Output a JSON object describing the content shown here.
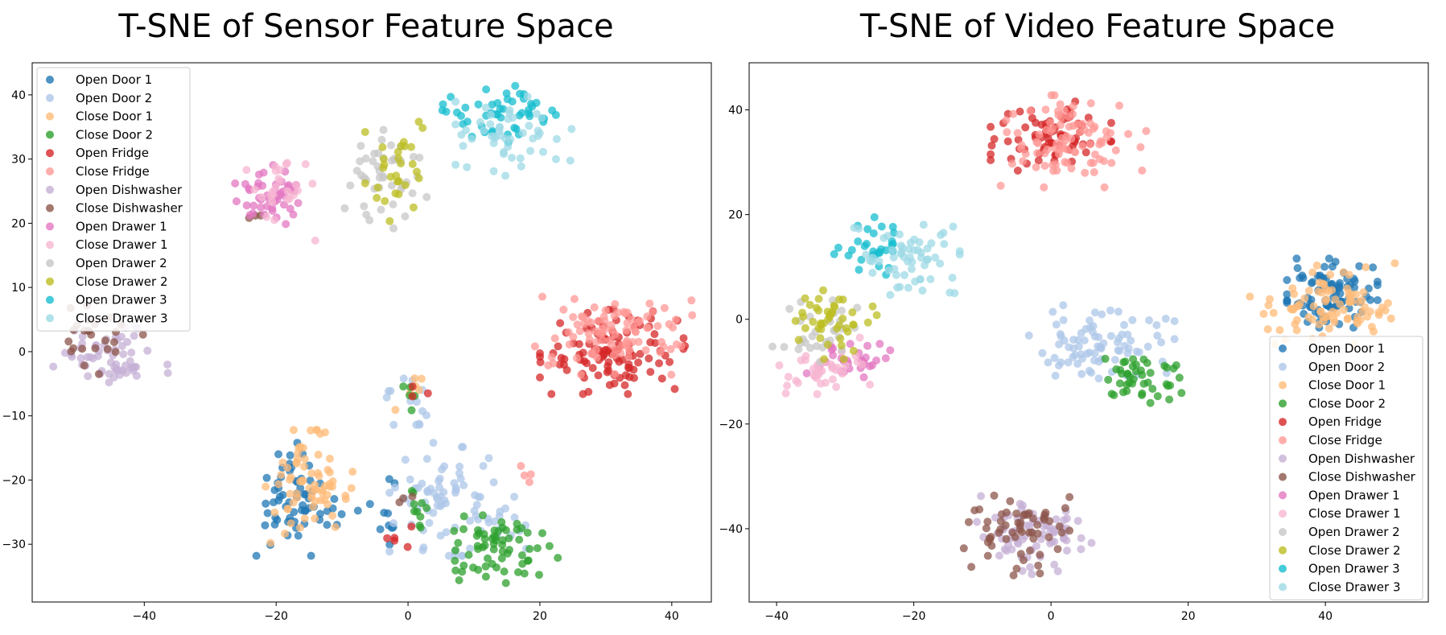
{
  "palette": {
    "Open Door 1": "#1f77b4",
    "Open Door 2": "#aec7e8",
    "Close Door 1": "#ffbb78",
    "Close Door 2": "#2ca02c",
    "Open Fridge": "#d62728",
    "Close Fridge": "#ff9896",
    "Open Dishwasher": "#c5b0d5",
    "Close Dishwasher": "#8c564b",
    "Open Drawer 1": "#e377c2",
    "Close Drawer 1": "#f7b6d2",
    "Open Drawer 2": "#c7c7c7",
    "Close Drawer 2": "#bcbd22",
    "Open Drawer 3": "#17becf",
    "Close Drawer 3": "#9edae5"
  },
  "chart_data": [
    {
      "type": "scatter",
      "title": "T-SNE of Sensor Feature Space",
      "xlabel": "",
      "ylabel": "",
      "xlim": [
        -57,
        46
      ],
      "ylim": [
        -39,
        45
      ],
      "xticks": [
        -40,
        -20,
        0,
        20,
        40
      ],
      "yticks": [
        -30,
        -20,
        -10,
        0,
        10,
        20,
        30,
        40
      ],
      "grid": false,
      "legend": "upper-left",
      "series": [
        {
          "name": "Open Door 1",
          "clusters": [
            {
              "cx": -18,
              "cy": -23,
              "sx": 2.5,
              "sy": 4,
              "n": 55
            },
            {
              "cx": -12,
              "cy": -25,
              "sx": 2,
              "sy": 1.5,
              "n": 10
            },
            {
              "cx": -3,
              "cy": -24,
              "sx": 2,
              "sy": 4,
              "n": 10
            }
          ]
        },
        {
          "name": "Open Door 2",
          "clusters": [
            {
              "cx": 6,
              "cy": -23,
              "sx": 4,
              "sy": 4,
              "n": 70
            },
            {
              "cx": 0,
              "cy": -7,
              "sx": 2,
              "sy": 2,
              "n": 14
            },
            {
              "cx": 13,
              "cy": -27,
              "sx": 3,
              "sy": 2,
              "n": 15
            }
          ]
        },
        {
          "name": "Close Door 1",
          "clusters": [
            {
              "cx": -15,
              "cy": -21,
              "sx": 3,
              "sy": 4,
              "n": 70
            },
            {
              "cx": 0,
              "cy": -6,
              "sx": 1.5,
              "sy": 1.5,
              "n": 6
            }
          ]
        },
        {
          "name": "Close Door 2",
          "clusters": [
            {
              "cx": 14,
              "cy": -31,
              "sx": 4,
              "sy": 2.5,
              "n": 65
            },
            {
              "cx": 2,
              "cy": -23,
              "sx": 2,
              "sy": 3,
              "n": 10
            },
            {
              "cx": 0,
              "cy": -7,
              "sx": 1.5,
              "sy": 1.5,
              "n": 5
            }
          ]
        },
        {
          "name": "Open Fridge",
          "clusters": [
            {
              "cx": 31,
              "cy": 0,
              "sx": 5,
              "sy": 3,
              "n": 110
            },
            {
              "cx": -1,
              "cy": -29,
              "sx": 1,
              "sy": 1,
              "n": 5
            },
            {
              "cx": 1,
              "cy": -6,
              "sx": 1,
              "sy": 1,
              "n": 3
            }
          ]
        },
        {
          "name": "Close Fridge",
          "clusters": [
            {
              "cx": 31,
              "cy": 3,
              "sx": 5.5,
              "sy": 3,
              "n": 90
            },
            {
              "cx": 18,
              "cy": -19,
              "sx": 0.8,
              "sy": 0.6,
              "n": 4
            }
          ]
        },
        {
          "name": "Open Dishwasher",
          "clusters": [
            {
              "cx": -45,
              "cy": -1,
              "sx": 4,
              "sy": 2.5,
              "n": 60
            }
          ]
        },
        {
          "name": "Close Dishwasher",
          "clusters": [
            {
              "cx": -47,
              "cy": 2,
              "sx": 4,
              "sy": 2.5,
              "n": 25
            },
            {
              "cx": -23,
              "cy": 21,
              "sx": 0.5,
              "sy": 0.5,
              "n": 3
            },
            {
              "cx": -1,
              "cy": -24,
              "sx": 1,
              "sy": 1,
              "n": 3
            }
          ]
        },
        {
          "name": "Open Drawer 1",
          "clusters": [
            {
              "cx": -21,
              "cy": 25,
              "sx": 2.5,
              "sy": 2.5,
              "n": 45
            }
          ]
        },
        {
          "name": "Close Drawer 1",
          "clusters": [
            {
              "cx": -19,
              "cy": 26,
              "sx": 2.5,
              "sy": 2.5,
              "n": 25
            },
            {
              "cx": -14,
              "cy": 17,
              "sx": 0.3,
              "sy": 0.3,
              "n": 1
            }
          ]
        },
        {
          "name": "Open Drawer 2",
          "clusters": [
            {
              "cx": -3,
              "cy": 28,
              "sx": 3,
              "sy": 4,
              "n": 45
            }
          ]
        },
        {
          "name": "Close Drawer 2",
          "clusters": [
            {
              "cx": -1,
              "cy": 28,
              "sx": 2.5,
              "sy": 4,
              "n": 30
            }
          ]
        },
        {
          "name": "Open Drawer 3",
          "clusters": [
            {
              "cx": 14,
              "cy": 37,
              "sx": 4,
              "sy": 2,
              "n": 50
            }
          ]
        },
        {
          "name": "Close Drawer 3",
          "clusters": [
            {
              "cx": 16,
              "cy": 34,
              "sx": 4,
              "sy": 3,
              "n": 50
            }
          ]
        }
      ]
    },
    {
      "type": "scatter",
      "title": "T-SNE of Video Feature Space",
      "xlabel": "",
      "ylabel": "",
      "xlim": [
        -44,
        55
      ],
      "ylim": [
        -54,
        49
      ],
      "xticks": [
        -40,
        -20,
        0,
        20,
        40
      ],
      "yticks": [
        -40,
        -20,
        0,
        20,
        40
      ],
      "grid": false,
      "legend": "lower-right",
      "series": [
        {
          "name": "Open Door 1",
          "clusters": [
            {
              "cx": 41,
              "cy": 5,
              "sx": 3,
              "sy": 3,
              "n": 90
            }
          ]
        },
        {
          "name": "Open Door 2",
          "clusters": [
            {
              "cx": 7,
              "cy": -5,
              "sx": 5,
              "sy": 3.5,
              "n": 85
            }
          ]
        },
        {
          "name": "Close Door 1",
          "clusters": [
            {
              "cx": 40,
              "cy": 3,
              "sx": 5,
              "sy": 3.5,
              "n": 90
            }
          ]
        },
        {
          "name": "Close Door 2",
          "clusters": [
            {
              "cx": 13,
              "cy": -11,
              "sx": 3,
              "sy": 3,
              "n": 45
            }
          ]
        },
        {
          "name": "Open Fridge",
          "clusters": [
            {
              "cx": 0,
              "cy": 35,
              "sx": 4,
              "sy": 3,
              "n": 70
            }
          ]
        },
        {
          "name": "Close Fridge",
          "clusters": [
            {
              "cx": 3,
              "cy": 34,
              "sx": 5,
              "sy": 4,
              "n": 90
            }
          ]
        },
        {
          "name": "Open Dishwasher",
          "clusters": [
            {
              "cx": -2,
              "cy": -41,
              "sx": 4,
              "sy": 3.5,
              "n": 75
            }
          ]
        },
        {
          "name": "Close Dishwasher",
          "clusters": [
            {
              "cx": -5,
              "cy": -41,
              "sx": 3.5,
              "sy": 4,
              "n": 60
            }
          ]
        },
        {
          "name": "Open Drawer 1",
          "clusters": [
            {
              "cx": -29,
              "cy": -8,
              "sx": 3,
              "sy": 1.5,
              "n": 30
            }
          ]
        },
        {
          "name": "Close Drawer 1",
          "clusters": [
            {
              "cx": -33,
              "cy": -9,
              "sx": 3,
              "sy": 2.5,
              "n": 40
            }
          ]
        },
        {
          "name": "Open Drawer 2",
          "clusters": [
            {
              "cx": -34,
              "cy": -2,
              "sx": 3,
              "sy": 3.5,
              "n": 30
            }
          ]
        },
        {
          "name": "Close Drawer 2",
          "clusters": [
            {
              "cx": -32,
              "cy": -1,
              "sx": 3,
              "sy": 3,
              "n": 45
            }
          ]
        },
        {
          "name": "Open Drawer 3",
          "clusters": [
            {
              "cx": -25,
              "cy": 14,
              "sx": 3,
              "sy": 2.5,
              "n": 30
            }
          ]
        },
        {
          "name": "Close Drawer 3",
          "clusters": [
            {
              "cx": -21,
              "cy": 11,
              "sx": 3.5,
              "sy": 3.5,
              "n": 60
            }
          ]
        }
      ]
    }
  ]
}
